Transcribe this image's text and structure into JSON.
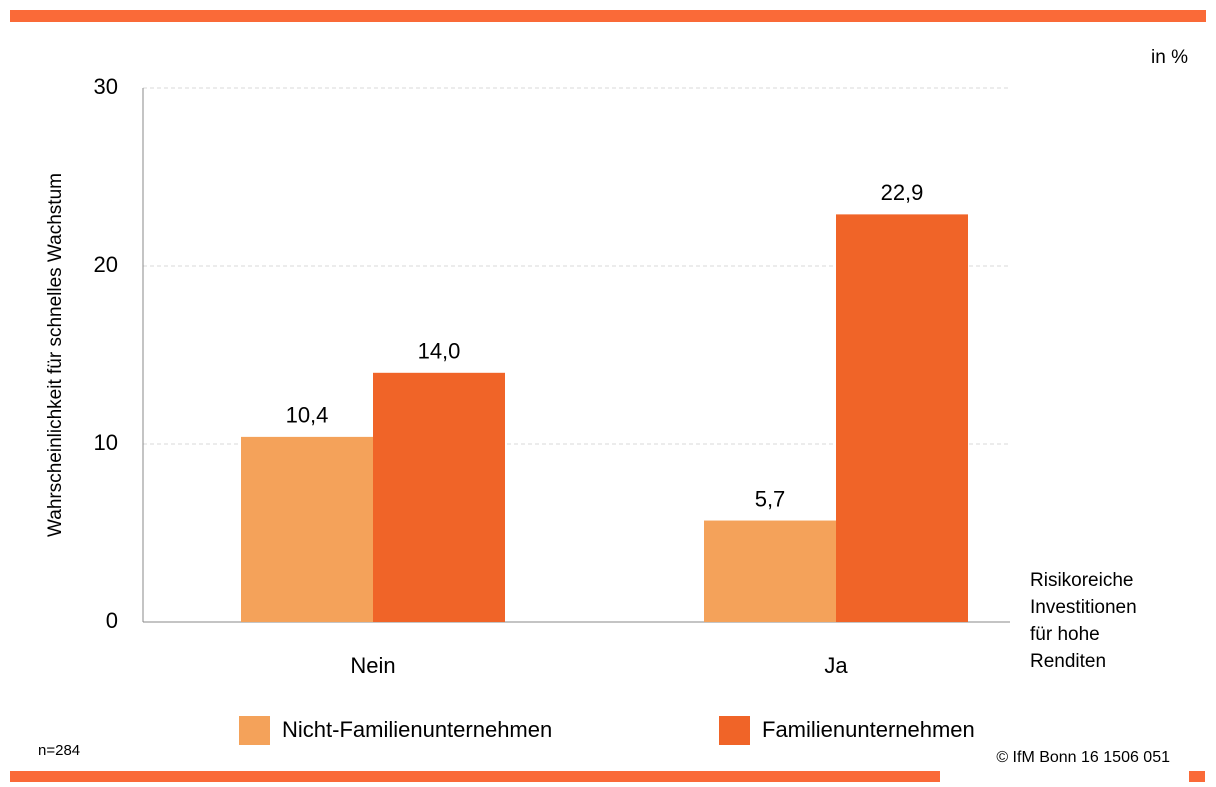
{
  "chart_data": {
    "type": "bar",
    "unit_note": "in %",
    "ylabel": "Wahrscheinlichkeit für schnelles Wachstum",
    "xlabel": [
      "Risikoreiche",
      "Investitionen",
      "für hohe",
      "Renditen"
    ],
    "categories": [
      "Nein",
      "Ja"
    ],
    "series": [
      {
        "name": "Nicht-Familienunternehmen",
        "color": "#f4a25a",
        "values": [
          10.4,
          5.7
        ],
        "value_labels": [
          "10,4",
          "5,7"
        ]
      },
      {
        "name": "Familienunternehmen",
        "color": "#f06428",
        "values": [
          14.0,
          22.9
        ],
        "value_labels": [
          "14,0",
          "22,9"
        ]
      }
    ],
    "ylim": [
      0,
      30
    ],
    "yticks": [
      0,
      10,
      20,
      30
    ],
    "grid": true,
    "sample_note": "n=284",
    "footer": "© IfM Bonn 16 1506 051",
    "accent_color": "#fa6a38"
  }
}
